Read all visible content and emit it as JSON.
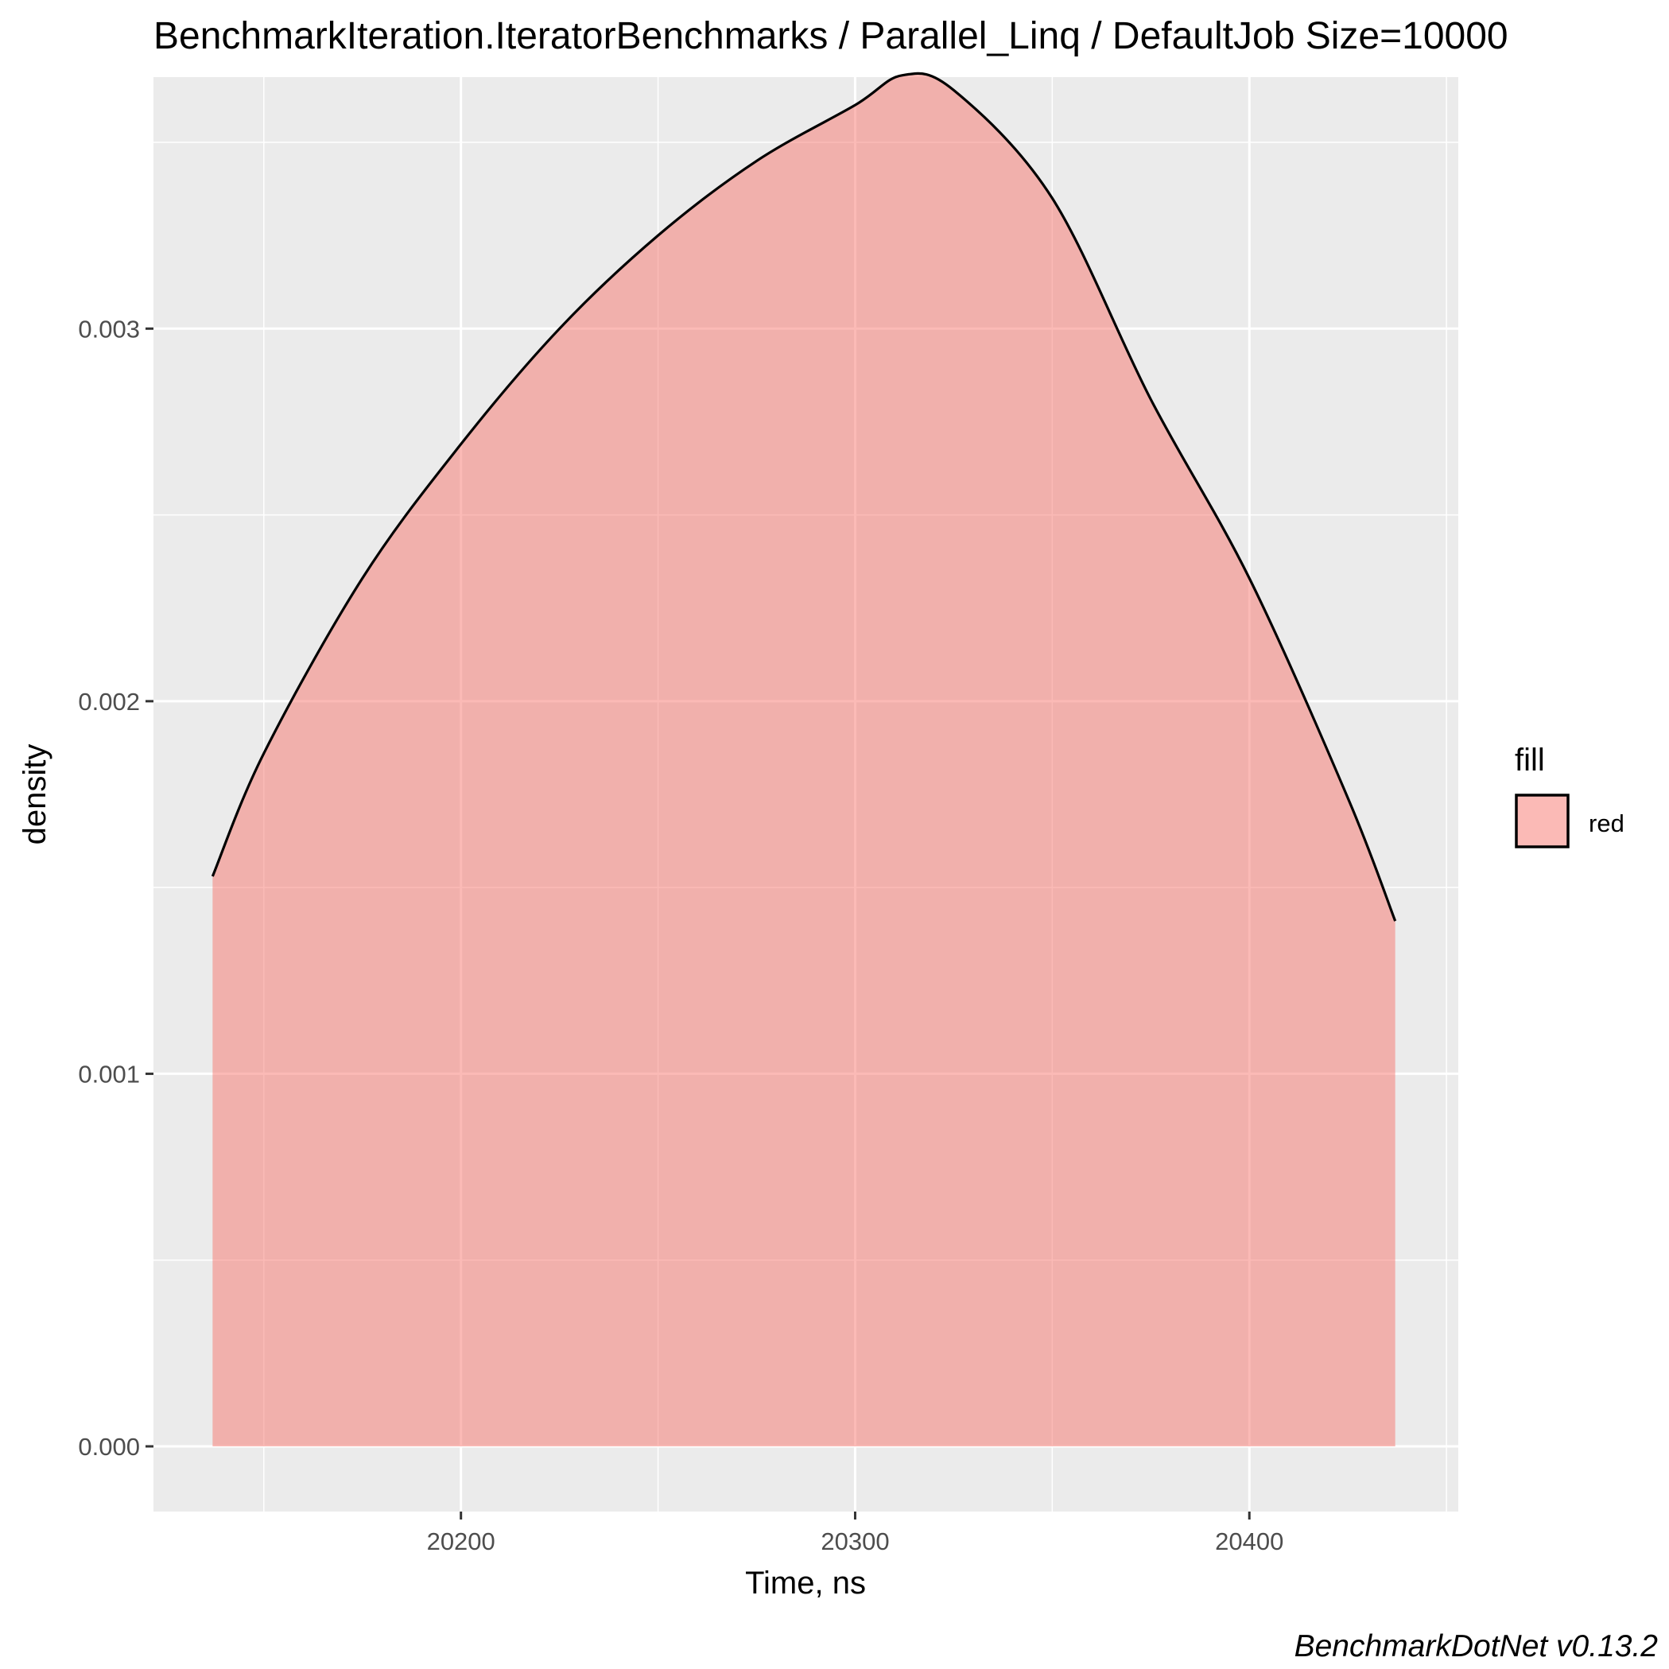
{
  "chart_data": {
    "type": "area",
    "title": "BenchmarkIteration.IteratorBenchmarks / Parallel_Linq / DefaultJob Size=10000",
    "xlabel": "Time, ns",
    "ylabel": "density",
    "caption": "BenchmarkDotNet v0.13.2",
    "xlim": [
      20122,
      20453
    ],
    "ylim": [
      -0.000175,
      0.003675
    ],
    "x_ticks": [
      20200,
      20300,
      20400
    ],
    "x_tick_labels": [
      "20200",
      "20300",
      "20400"
    ],
    "x_minor_ticks": [
      20150,
      20250,
      20350,
      20450
    ],
    "y_ticks": [
      0.0,
      0.001,
      0.002,
      0.003
    ],
    "y_tick_labels": [
      "0.000",
      "0.001",
      "0.002",
      "0.003"
    ],
    "y_minor_ticks": [
      0.0005,
      0.0015,
      0.0025,
      0.0035
    ],
    "grid": true,
    "legend": {
      "title": "fill",
      "position": "right",
      "entries": [
        {
          "label": "red",
          "color": "#F8766D"
        }
      ]
    },
    "series": [
      {
        "fill": "#F8766D",
        "fill_opacity": 0.5,
        "line_color": "#000000",
        "x": [
          20137,
          20150,
          20175,
          20200,
          20225,
          20250,
          20275,
          20300,
          20312,
          20325,
          20350,
          20375,
          20400,
          20425,
          20437
        ],
        "y": [
          0.00153,
          0.00186,
          0.00233,
          0.00269,
          0.003,
          0.00325,
          0.00345,
          0.0036,
          0.00368,
          0.00364,
          0.00335,
          0.00281,
          0.00233,
          0.00174,
          0.00141
        ]
      }
    ]
  }
}
